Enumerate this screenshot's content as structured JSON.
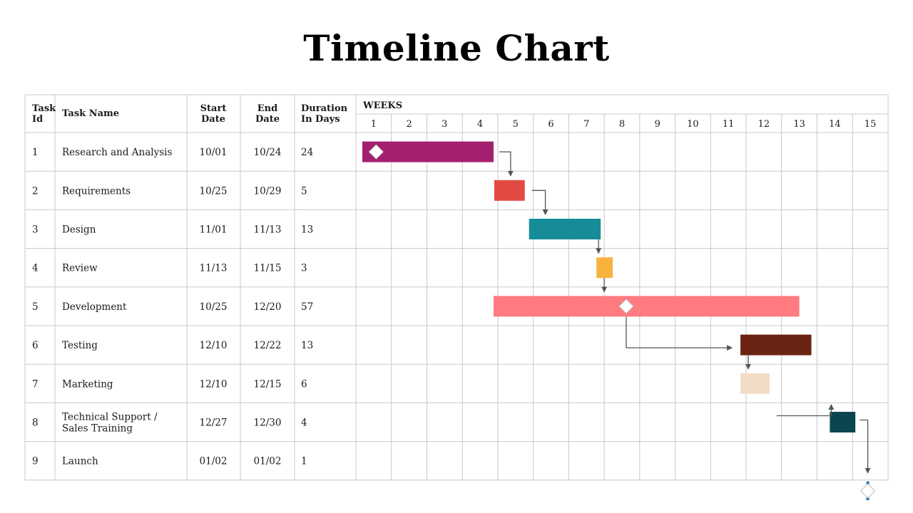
{
  "title": "Timeline Chart",
  "headers": {
    "task_id": [
      "Task",
      "Id"
    ],
    "task_name": "Task Name",
    "start_date": [
      "Start",
      "Date"
    ],
    "end_date": [
      "End",
      "Date"
    ],
    "duration": [
      "Duration",
      "In Days"
    ],
    "weeks_label": "WEEKS"
  },
  "weeks": [
    "1",
    "2",
    "3",
    "4",
    "5",
    "6",
    "7",
    "8",
    "9",
    "10",
    "11",
    "12",
    "13",
    "14",
    "15"
  ],
  "tasks": [
    {
      "id": "1",
      "name": [
        "Research and Analysis"
      ],
      "start": "10/01",
      "end": "10/24",
      "duration": "24",
      "start_week": 0.18,
      "end_week": 3.88,
      "color": "#A3206F",
      "milestone_week": 0.57
    },
    {
      "id": "2",
      "name": [
        "Requirements"
      ],
      "start": "10/25",
      "end": "10/29",
      "duration": "5",
      "start_week": 3.9,
      "end_week": 4.76,
      "color": "#E24A42"
    },
    {
      "id": "3",
      "name": [
        "Design"
      ],
      "start": "11/01",
      "end": "11/13",
      "duration": "13",
      "start_week": 4.88,
      "end_week": 6.9,
      "color": "#168C98"
    },
    {
      "id": "4",
      "name": [
        "Review"
      ],
      "start": "11/13",
      "end": "11/15",
      "duration": "3",
      "start_week": 6.78,
      "end_week": 7.24,
      "color": "#F8B33E"
    },
    {
      "id": "5",
      "name": [
        "Development"
      ],
      "start": "10/25",
      "end": "12/20",
      "duration": "57",
      "start_week": 3.88,
      "end_week": 12.5,
      "color": "#FF7B80",
      "milestone_week": 7.62
    },
    {
      "id": "6",
      "name": [
        "Testing"
      ],
      "start": "12/10",
      "end": "12/22",
      "duration": "13",
      "start_week": 10.84,
      "end_week": 12.84,
      "color": "#6B2414"
    },
    {
      "id": "7",
      "name": [
        "Marketing"
      ],
      "start": "12/10",
      "end": "12/15",
      "duration": "6",
      "start_week": 10.84,
      "end_week": 11.66,
      "color": "#F2DCC7"
    },
    {
      "id": "8",
      "name": [
        "Technical Support /",
        "Sales Training"
      ],
      "start": "12/27",
      "end": "12/30",
      "duration": "4",
      "start_week": 13.36,
      "end_week": 14.08,
      "color": "#0B4650"
    },
    {
      "id": "9",
      "name": [
        "Launch"
      ],
      "start": "01/02",
      "end": "01/02",
      "duration": "1",
      "milestone_week": 14.43,
      "launch": true
    }
  ],
  "dependencies": [
    [
      0,
      1
    ],
    [
      1,
      2
    ],
    [
      2,
      3
    ],
    [
      3,
      4
    ],
    [
      4,
      5
    ],
    [
      5,
      6
    ],
    [
      6,
      7
    ],
    [
      7,
      8
    ]
  ],
  "colors": {
    "grid": "#c8c8c8",
    "arrow": "#555555",
    "launch_marker": "#1F6FB5"
  }
}
